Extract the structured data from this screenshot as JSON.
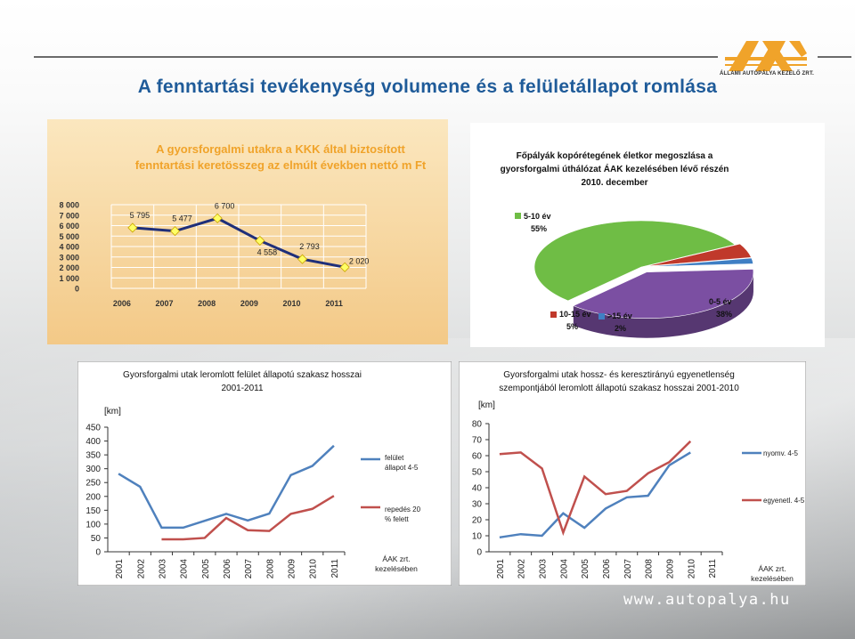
{
  "title": "A fenntartási tevékenység volumene és a felületállapot romlása",
  "logo": {
    "name": "ÁLLAMI AUTÓPÁLYA KEZELŐ ZRT."
  },
  "footer_url": "www.autopalya.hu",
  "chart_data": [
    {
      "type": "line",
      "title": "A gyorsforgalmi utakra a KKK által biztosított fenntartási keretösszeg az elmúlt években nettó m Ft",
      "title_lines": [
        "A gyorsforgalmi utakra a KKK által biztosított",
        "fenntartási keretösszeg az elmúlt években nettó m Ft"
      ],
      "categories": [
        "2006",
        "2007",
        "2008",
        "2009",
        "2010",
        "2011"
      ],
      "values": [
        5795,
        5477,
        6700,
        4558,
        2793,
        2020
      ],
      "data_labels": [
        "5 795",
        "5 477",
        "6 700",
        "4 558",
        "2 793",
        "2 020"
      ],
      "ylim": [
        0,
        8000
      ],
      "yticks": [
        0,
        1000,
        2000,
        3000,
        4000,
        5000,
        6000,
        7000,
        8000
      ],
      "ytick_labels": [
        "0",
        "1 000",
        "2 000",
        "3 000",
        "4 000",
        "5 000",
        "6 000",
        "7 000",
        "8 000"
      ],
      "grid": true,
      "colors": {
        "line": "#1f2f7a",
        "marker": "#ffff66",
        "background": "#f6d69d",
        "title": "#f0a32a"
      }
    },
    {
      "type": "pie",
      "title": "Főpályák kopórétegének életkor megoszlása a gyorsforgalmi úthálózat ÁAK kezelésében lévő részén 2010. december",
      "title_lines": [
        "Főpályák kopórétegének életkor megoszlása a",
        "gyorsforgalmi úthálózat ÁAK kezelésében lévő részén",
        "2010. december"
      ],
      "slices": [
        {
          "label": "5-10 év",
          "pct_label": "55%",
          "value": 55,
          "color": "#6fbd45"
        },
        {
          "label": "10-15 év",
          "pct_label": "5%",
          "value": 5,
          "color": "#c0392b"
        },
        {
          "label": ">15 év",
          "pct_label": "2%",
          "value": 2,
          "color": "#3f7fc4"
        },
        {
          "label": "0-5 év",
          "pct_label": "38%",
          "value": 38,
          "color": "#7b4fa2"
        }
      ]
    },
    {
      "type": "line",
      "title": "Gyorsforgalmi utak leromlott felület állapotú szakasz hosszai 2001-2011",
      "title_lines": [
        "Gyorsforgalmi utak leromlott felület állapotú szakasz hosszai",
        "2001-2011"
      ],
      "ylabel": "[km]",
      "categories": [
        "2001",
        "2002",
        "2003",
        "2004",
        "2005",
        "2006",
        "2007",
        "2008",
        "2009",
        "2010",
        "2011"
      ],
      "ylim": [
        0,
        450
      ],
      "yticks": [
        0,
        50,
        100,
        150,
        200,
        250,
        300,
        350,
        400,
        450
      ],
      "series": [
        {
          "name": "felület állapot 4-5",
          "name_lines": [
            "felület",
            "állapot 4-5"
          ],
          "color": "#4f81bd",
          "values": [
            282,
            235,
            87,
            87,
            112,
            137,
            113,
            138,
            277,
            310,
            383
          ]
        },
        {
          "name": "repedés 20 % felett",
          "name_lines": [
            "repedés 20",
            "% felett"
          ],
          "color": "#c0504d",
          "values": [
            null,
            null,
            45,
            45,
            50,
            122,
            78,
            75,
            137,
            155,
            202
          ]
        }
      ],
      "note_lines": [
        "ÁAK zrt.",
        "kezelésében"
      ]
    },
    {
      "type": "line",
      "title": "Gyorsforgalmi utak hossz- és keresztirányú egyenetlenség szempontjából leromlott állapotú szakasz hosszai 2001-2010",
      "title_lines": [
        "Gyorsforgalmi utak hossz- és keresztirányú egyenetlenség",
        "szempontjából leromlott állapotú szakasz hosszai 2001-2010"
      ],
      "ylabel": "[km]",
      "categories": [
        "2001",
        "2002",
        "2003",
        "2004",
        "2005",
        "2006",
        "2007",
        "2008",
        "2009",
        "2010",
        "2011"
      ],
      "ylim": [
        0,
        80
      ],
      "yticks": [
        0,
        10,
        20,
        30,
        40,
        50,
        60,
        70,
        80
      ],
      "series": [
        {
          "name": "nyomv. 4-5",
          "color": "#4f81bd",
          "values": [
            9,
            11,
            10,
            24,
            15,
            27,
            34,
            35,
            54,
            62,
            null
          ]
        },
        {
          "name": "egyenetl. 4-5",
          "color": "#c0504d",
          "values": [
            61,
            62,
            52,
            12,
            47,
            36,
            38,
            49,
            56,
            69,
            null
          ]
        }
      ],
      "note_lines": [
        "ÁAK zrt.",
        "kezelésében"
      ]
    }
  ]
}
